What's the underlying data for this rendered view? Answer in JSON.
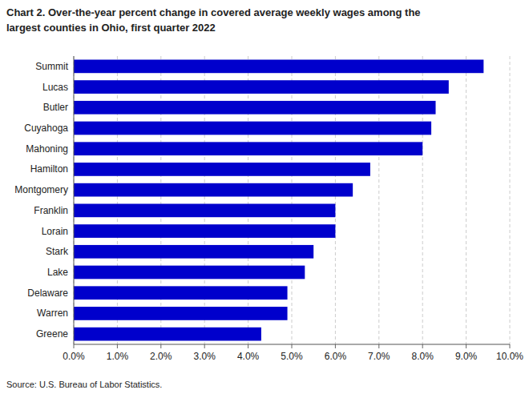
{
  "chart_data": {
    "type": "bar",
    "orientation": "horizontal",
    "title": "Chart 2. Over-the-year percent change in covered average weekly wages among the",
    "subtitle": "largest counties in Ohio, first quarter 2022",
    "source": "Source: U.S. Bureau of Labor Statistics.",
    "categories": [
      "Greene",
      "Warren",
      "Delaware",
      "Lake",
      "Stark",
      "Lorain",
      "Franklin",
      "Montgomery",
      "Hamilton",
      "Mahoning",
      "Cuyahoga",
      "Butler",
      "Lucas",
      "Summit"
    ],
    "values": [
      0.043,
      0.049,
      0.049,
      0.053,
      0.055,
      0.06,
      0.06,
      0.064,
      0.068,
      0.08,
      0.082,
      0.083,
      0.086,
      0.094
    ],
    "color": "#0000cc",
    "xlim": [
      0,
      0.1
    ],
    "xticks": [
      {
        "value": 0.0,
        "label": "0.0%"
      },
      {
        "value": 0.01,
        "label": "1.0%"
      },
      {
        "value": 0.02,
        "label": "2.0%"
      },
      {
        "value": 0.03,
        "label": "3.0%"
      },
      {
        "value": 0.04,
        "label": "4.0%"
      },
      {
        "value": 0.05,
        "label": "5.0%"
      },
      {
        "value": 0.06,
        "label": "6.0%"
      },
      {
        "value": 0.07,
        "label": "7.0%"
      },
      {
        "value": 0.08,
        "label": "8.0%"
      },
      {
        "value": 0.09,
        "label": "9.0%"
      },
      {
        "value": 0.1,
        "label": "10.0%"
      }
    ],
    "grid": true
  }
}
